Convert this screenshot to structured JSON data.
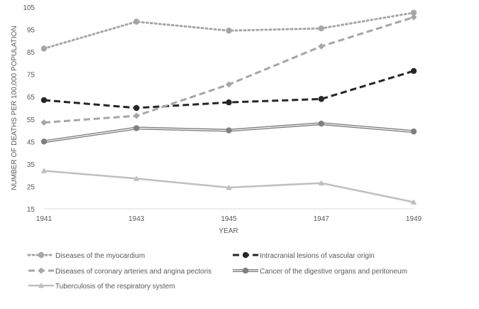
{
  "chart_data": {
    "type": "line",
    "title": "",
    "xlabel": "YEAR",
    "ylabel": "NUMBER  OF DEATHS  PER 100,000 POPULATION",
    "x": [
      "1941",
      "1943",
      "1945",
      "1947",
      "1949"
    ],
    "ylim": [
      15,
      105
    ],
    "yticks": [
      15,
      25,
      35,
      45,
      55,
      65,
      75,
      85,
      95,
      105
    ],
    "grid": false,
    "legend_position": "bottom",
    "series": [
      {
        "name": "Diseases of the myocardium",
        "values": [
          86.5,
          98.5,
          94.5,
          95.5,
          102.5
        ],
        "color": "#a6a6a6",
        "line": "dotted",
        "marker": "circle"
      },
      {
        "name": "Intracranial lesions of vascular origin",
        "values": [
          63.5,
          60,
          62.5,
          64,
          76.5
        ],
        "color": "#262626",
        "line": "dashed",
        "marker": "circle"
      },
      {
        "name": "Diseases of coronary arteries and angina pectoris",
        "values": [
          53.5,
          56.5,
          70.5,
          87.5,
          100.5
        ],
        "color": "#a6a6a6",
        "line": "dashed",
        "marker": "diamond"
      },
      {
        "name": "Cancer of the digestive organs and peritoneum",
        "values": [
          45,
          51,
          50,
          53,
          49.5
        ],
        "color": "#7f7f7f",
        "line": "double",
        "marker": "circle"
      },
      {
        "name": "Tuberculosis of the respiratory system",
        "values": [
          32,
          28.5,
          24.5,
          26.5,
          18
        ],
        "color": "#bfbfbf",
        "line": "solid",
        "marker": "triangle"
      }
    ]
  }
}
